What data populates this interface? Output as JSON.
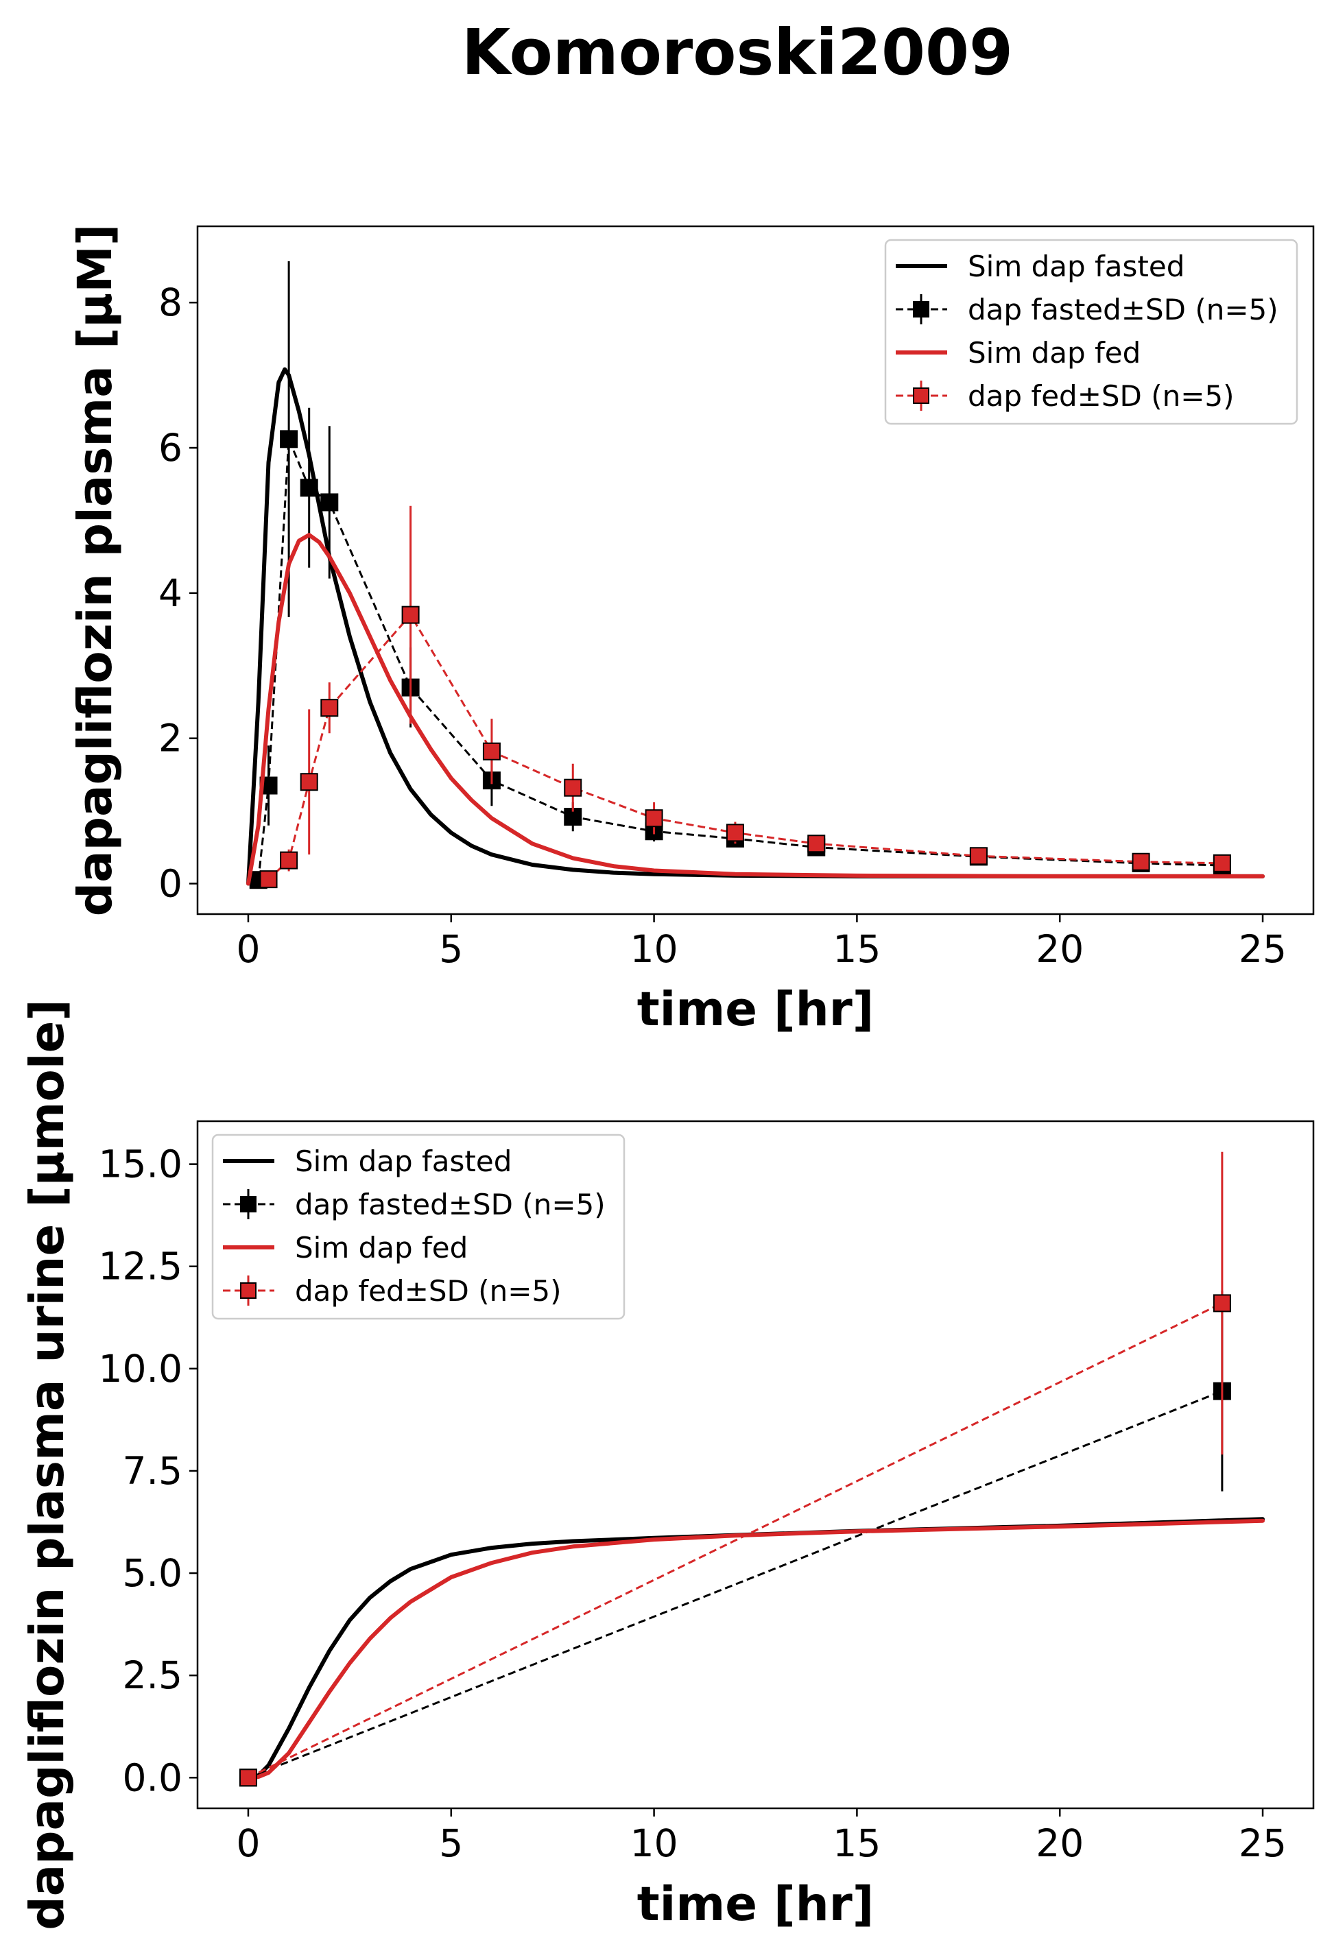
{
  "figure_title": "Komoroski2009",
  "colors": {
    "fasted": "#000000",
    "fed": "#d62728",
    "legend_border": "#cccccc"
  },
  "chart_data": [
    {
      "type": "line",
      "xlabel": "time [hr]",
      "ylabel": "dapagliflozin plasma [µM]",
      "xlim": [
        -1.25,
        26.25
      ],
      "ylim": [
        -0.42,
        9.05
      ],
      "xticks": [
        0,
        5,
        10,
        15,
        20,
        25
      ],
      "xtick_labels": [
        "0",
        "5",
        "10",
        "15",
        "20",
        "25"
      ],
      "yticks": [
        0,
        2,
        4,
        6,
        8
      ],
      "ytick_labels": [
        "0",
        "2",
        "4",
        "6",
        "8"
      ],
      "grid": false,
      "legend_position": "top-right",
      "series": [
        {
          "name": "Sim dap fasted",
          "kind": "line",
          "color": "#000000",
          "x": [
            0,
            0.25,
            0.5,
            0.75,
            0.9,
            1.0,
            1.25,
            1.5,
            1.75,
            2.0,
            2.5,
            3.0,
            3.5,
            4.0,
            4.5,
            5.0,
            5.5,
            6.0,
            7.0,
            8.0,
            9.0,
            10.0,
            12.0,
            15.0,
            20.0,
            25.0
          ],
          "y": [
            0,
            2.5,
            5.8,
            6.9,
            7.08,
            7.0,
            6.5,
            5.9,
            5.2,
            4.5,
            3.4,
            2.5,
            1.8,
            1.3,
            0.95,
            0.7,
            0.52,
            0.4,
            0.26,
            0.19,
            0.15,
            0.13,
            0.11,
            0.1,
            0.1,
            0.1
          ]
        },
        {
          "name": "dap fasted±SD (n=5)",
          "kind": "errorbar",
          "color": "#000000",
          "x": [
            0.25,
            0.5,
            1.0,
            1.5,
            2.0,
            4.0,
            6.0,
            8.0,
            10.0,
            12.0,
            14.0,
            18.0,
            22.0,
            24.0
          ],
          "y": [
            0.05,
            1.35,
            6.12,
            5.45,
            5.25,
            2.7,
            1.42,
            0.92,
            0.72,
            0.62,
            0.5,
            0.37,
            0.28,
            0.25
          ],
          "err": [
            0.04,
            0.55,
            2.45,
            1.1,
            1.05,
            0.55,
            0.35,
            0.2,
            0.14,
            0.1,
            0.08,
            0.06,
            0.05,
            0.05
          ]
        },
        {
          "name": "Sim dap fed",
          "kind": "line",
          "color": "#d62728",
          "x": [
            0,
            0.25,
            0.5,
            0.75,
            1.0,
            1.25,
            1.5,
            1.75,
            2.0,
            2.5,
            3.0,
            3.5,
            4.0,
            4.5,
            5.0,
            5.5,
            6.0,
            7.0,
            8.0,
            9.0,
            10.0,
            12.0,
            15.0,
            20.0,
            25.0
          ],
          "y": [
            0,
            0.8,
            2.4,
            3.6,
            4.4,
            4.72,
            4.8,
            4.7,
            4.5,
            4.0,
            3.4,
            2.8,
            2.3,
            1.85,
            1.45,
            1.15,
            0.9,
            0.55,
            0.35,
            0.24,
            0.18,
            0.13,
            0.11,
            0.1,
            0.1
          ]
        },
        {
          "name": "dap fed±SD (n=5)",
          "kind": "errorbar",
          "color": "#d62728",
          "x": [
            0.5,
            1.0,
            1.5,
            2.0,
            4.0,
            6.0,
            8.0,
            10.0,
            12.0,
            14.0,
            18.0,
            22.0,
            24.0
          ],
          "y": [
            0.06,
            0.32,
            1.4,
            2.42,
            3.7,
            1.82,
            1.32,
            0.9,
            0.7,
            0.55,
            0.38,
            0.3,
            0.28
          ],
          "err": [
            0.04,
            0.15,
            1.0,
            0.35,
            1.5,
            0.45,
            0.33,
            0.22,
            0.15,
            0.12,
            0.08,
            0.06,
            0.06
          ]
        }
      ]
    },
    {
      "type": "line",
      "xlabel": "time [hr]",
      "ylabel": "dapagliflozin plasma urine [µmole]",
      "xlim": [
        -1.25,
        26.25
      ],
      "ylim": [
        -0.75,
        16.05
      ],
      "xticks": [
        0,
        5,
        10,
        15,
        20,
        25
      ],
      "xtick_labels": [
        "0",
        "5",
        "10",
        "15",
        "20",
        "25"
      ],
      "yticks": [
        0,
        2.5,
        5,
        7.5,
        10,
        12.5,
        15
      ],
      "ytick_labels": [
        "0.0",
        "2.5",
        "5.0",
        "7.5",
        "10.0",
        "12.5",
        "15.0"
      ],
      "grid": false,
      "legend_position": "top-left",
      "series": [
        {
          "name": "Sim dap fasted",
          "kind": "line",
          "color": "#000000",
          "x": [
            0,
            0.25,
            0.5,
            1.0,
            1.5,
            2.0,
            2.5,
            3.0,
            3.5,
            4.0,
            5.0,
            6.0,
            7.0,
            8.0,
            10.0,
            12.0,
            15.0,
            20.0,
            25.0
          ],
          "y": [
            0,
            0.05,
            0.3,
            1.2,
            2.2,
            3.1,
            3.85,
            4.4,
            4.8,
            5.1,
            5.45,
            5.62,
            5.72,
            5.78,
            5.86,
            5.93,
            6.03,
            6.16,
            6.32
          ]
        },
        {
          "name": "dap fasted±SD (n=5)",
          "kind": "errorbar",
          "color": "#000000",
          "x": [
            0,
            24
          ],
          "y": [
            0,
            9.45
          ],
          "err": [
            0,
            2.45
          ]
        },
        {
          "name": "Sim dap fed",
          "kind": "line",
          "color": "#d62728",
          "x": [
            0,
            0.25,
            0.5,
            1.0,
            1.5,
            2.0,
            2.5,
            3.0,
            3.5,
            4.0,
            5.0,
            6.0,
            7.0,
            8.0,
            10.0,
            12.0,
            15.0,
            20.0,
            25.0
          ],
          "y": [
            0,
            0.02,
            0.12,
            0.6,
            1.35,
            2.1,
            2.8,
            3.4,
            3.9,
            4.3,
            4.9,
            5.25,
            5.5,
            5.65,
            5.82,
            5.92,
            6.02,
            6.14,
            6.28
          ]
        },
        {
          "name": "dap fed±SD (n=5)",
          "kind": "errorbar",
          "color": "#d62728",
          "x": [
            0,
            24
          ],
          "y": [
            0,
            11.6
          ],
          "err": [
            0,
            3.7
          ]
        }
      ]
    }
  ]
}
